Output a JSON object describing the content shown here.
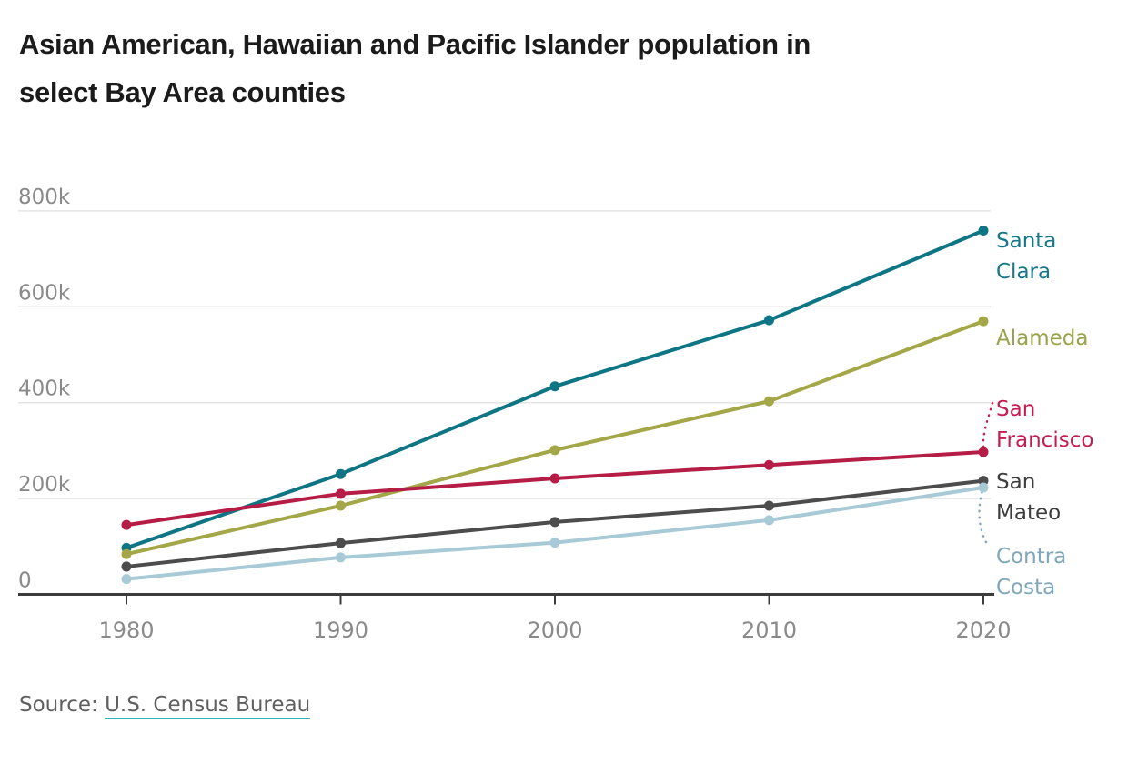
{
  "title": {
    "line1": "Asian American, Hawaiian and Pacific Islander population in",
    "line2": "select Bay Area counties"
  },
  "source": {
    "prefix": "Source: ",
    "link_text": "U.S. Census Bureau",
    "link_underline_color": "#2fb3bf"
  },
  "chart_data": {
    "type": "line",
    "title": "Asian American, Hawaiian and Pacific Islander population in select Bay Area counties",
    "xlabel": "",
    "ylabel": "",
    "x": [
      1980,
      1990,
      2000,
      2010,
      2020
    ],
    "x_tick_labels": [
      "1980",
      "1990",
      "2000",
      "2010",
      "2020"
    ],
    "y_ticks": [
      {
        "value": 0,
        "label": "0"
      },
      {
        "value": 200000,
        "label": "200k"
      },
      {
        "value": 400000,
        "label": "400k"
      },
      {
        "value": 600000,
        "label": "600k"
      },
      {
        "value": 800000,
        "label": "800k"
      }
    ],
    "ylim": [
      0,
      850000
    ],
    "grid": "horizontal-only",
    "legend_position": "right-edge-direct-labels",
    "series": [
      {
        "name": "Santa Clara",
        "label": "Santa\nClara",
        "color": "#0e7584",
        "label_color": "#17778a",
        "values": [
          97000,
          251000,
          434000,
          572000,
          759000
        ]
      },
      {
        "name": "Alameda",
        "label": "Alameda",
        "color": "#a3a747",
        "label_color": "#9aa24c",
        "values": [
          84000,
          185000,
          301000,
          403000,
          570000
        ]
      },
      {
        "name": "San Francisco",
        "label": "San\nFrancisco",
        "color": "#b51d47",
        "label_color": "#c31e50",
        "values": [
          145000,
          210000,
          242000,
          270000,
          297000
        ],
        "leader": "dotted"
      },
      {
        "name": "San Mateo",
        "label": "San\nMateo",
        "color": "#4c4c4c",
        "label_color": "#3d3d3d",
        "values": [
          58000,
          107000,
          151000,
          185000,
          237000
        ]
      },
      {
        "name": "Contra Costa",
        "label": "Contra\nCosta",
        "color": "#a7cad6",
        "label_color": "#7fa6ba",
        "values": [
          32000,
          77000,
          108000,
          155000,
          223000
        ],
        "leader": "dotted"
      }
    ]
  }
}
